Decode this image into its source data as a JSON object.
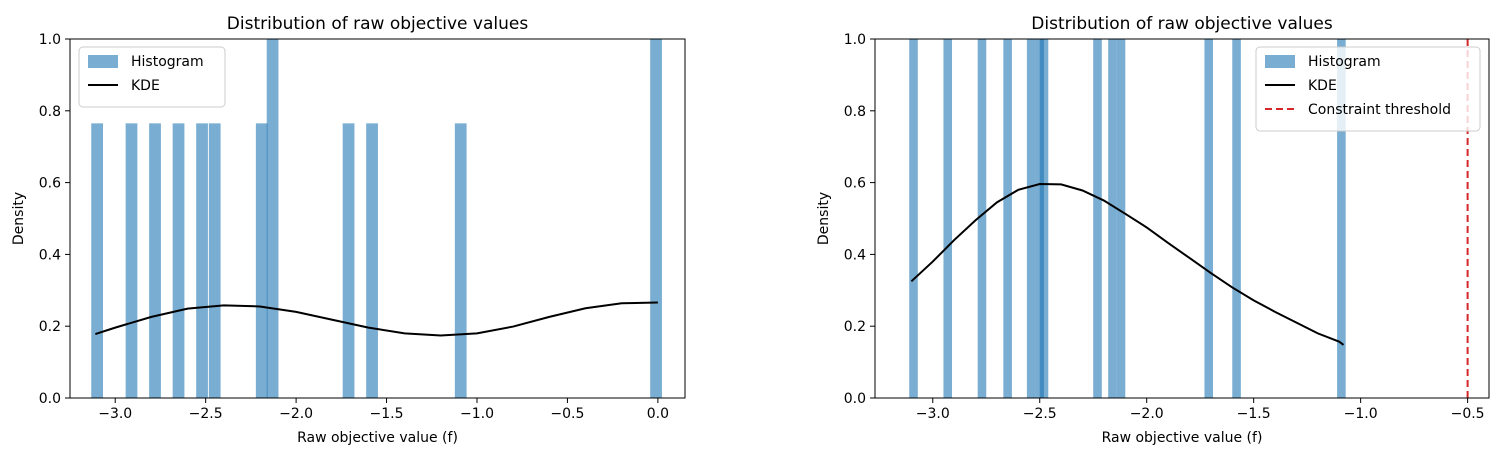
{
  "chart_data": [
    {
      "type": "bar",
      "title": "Distribution of raw objective values",
      "xlabel": "Raw objective value (f)",
      "ylabel": "Density",
      "xlim": [
        -3.25,
        0.15
      ],
      "ylim": [
        0.0,
        1.0
      ],
      "xticks": [
        -3.0,
        -2.5,
        -2.0,
        -1.5,
        -1.0,
        -0.5,
        0.0
      ],
      "xtick_labels": [
        "−3.0",
        "−2.5",
        "−2.0",
        "−1.5",
        "−1.0",
        "−0.5",
        "0.0"
      ],
      "yticks": [
        0.0,
        0.2,
        0.4,
        0.6,
        0.8,
        1.0
      ],
      "ytick_labels": [
        "0.0",
        "0.2",
        "0.4",
        "0.6",
        "0.8",
        "1.0"
      ],
      "legend_position": "top-left",
      "legend": [
        "Histogram",
        "KDE"
      ],
      "colors": {
        "histogram": "#1f77b4",
        "kde": "#000000"
      },
      "histogram": {
        "bin_width": 0.065,
        "bins": [
          {
            "x": -3.1,
            "density": 0.765
          },
          {
            "x": -2.91,
            "density": 0.765
          },
          {
            "x": -2.78,
            "density": 0.765
          },
          {
            "x": -2.65,
            "density": 0.765
          },
          {
            "x": -2.52,
            "density": 0.765
          },
          {
            "x": -2.45,
            "density": 0.765
          },
          {
            "x": -2.19,
            "density": 0.765
          },
          {
            "x": -2.13,
            "density": 1.53
          },
          {
            "x": -1.71,
            "density": 0.765
          },
          {
            "x": -1.58,
            "density": 0.765
          },
          {
            "x": -1.09,
            "density": 0.765
          },
          {
            "x": -0.01,
            "density": 1.53
          }
        ]
      },
      "kde": {
        "x": [
          -3.11,
          -3.0,
          -2.8,
          -2.6,
          -2.4,
          -2.2,
          -2.0,
          -1.8,
          -1.6,
          -1.4,
          -1.2,
          -1.0,
          -0.8,
          -0.6,
          -0.4,
          -0.2,
          0.0
        ],
        "y": [
          0.178,
          0.196,
          0.226,
          0.249,
          0.258,
          0.255,
          0.24,
          0.218,
          0.196,
          0.18,
          0.174,
          0.18,
          0.199,
          0.226,
          0.25,
          0.264,
          0.266
        ]
      }
    },
    {
      "type": "bar",
      "title": "Distribution of raw objective values",
      "xlabel": "Raw objective value (f)",
      "ylabel": "Density",
      "xlim": [
        -3.27,
        -0.4
      ],
      "ylim": [
        0.0,
        1.0
      ],
      "xticks": [
        -3.0,
        -2.5,
        -2.0,
        -1.5,
        -1.0,
        -0.5
      ],
      "xtick_labels": [
        "−3.0",
        "−2.5",
        "−2.0",
        "−1.5",
        "−1.0",
        "−0.5"
      ],
      "yticks": [
        0.0,
        0.2,
        0.4,
        0.6,
        0.8,
        1.0
      ],
      "ytick_labels": [
        "0.0",
        "0.2",
        "0.4",
        "0.6",
        "0.8",
        "1.0"
      ],
      "legend_position": "top-right",
      "legend": [
        "Histogram",
        "KDE",
        "Constraint threshold"
      ],
      "colors": {
        "histogram": "#1f77b4",
        "kde": "#000000",
        "threshold": "#d62728"
      },
      "constraint_threshold": -0.5,
      "histogram": {
        "bin_width": 0.04,
        "bins": [
          {
            "x": -3.09,
            "density": 1.2
          },
          {
            "x": -2.93,
            "density": 1.2
          },
          {
            "x": -2.77,
            "density": 1.2
          },
          {
            "x": -2.65,
            "density": 1.2
          },
          {
            "x": -2.54,
            "density": 1.2
          },
          {
            "x": -2.5,
            "density": 1.2
          },
          {
            "x": -2.48,
            "density": 1.2
          },
          {
            "x": -2.23,
            "density": 1.2
          },
          {
            "x": -2.16,
            "density": 1.2
          },
          {
            "x": -2.12,
            "density": 1.2
          },
          {
            "x": -1.71,
            "density": 1.2
          },
          {
            "x": -1.58,
            "density": 1.2
          },
          {
            "x": -1.09,
            "density": 1.2
          }
        ]
      },
      "kde": {
        "x": [
          -3.1,
          -3.0,
          -2.9,
          -2.8,
          -2.7,
          -2.6,
          -2.5,
          -2.4,
          -2.3,
          -2.2,
          -2.1,
          -2.0,
          -1.9,
          -1.8,
          -1.7,
          -1.6,
          -1.5,
          -1.4,
          -1.3,
          -1.2,
          -1.1,
          -1.08
        ],
        "y": [
          0.325,
          0.38,
          0.44,
          0.495,
          0.545,
          0.58,
          0.596,
          0.595,
          0.578,
          0.55,
          0.513,
          0.475,
          0.432,
          0.39,
          0.348,
          0.308,
          0.272,
          0.24,
          0.21,
          0.18,
          0.157,
          0.148
        ]
      }
    }
  ]
}
